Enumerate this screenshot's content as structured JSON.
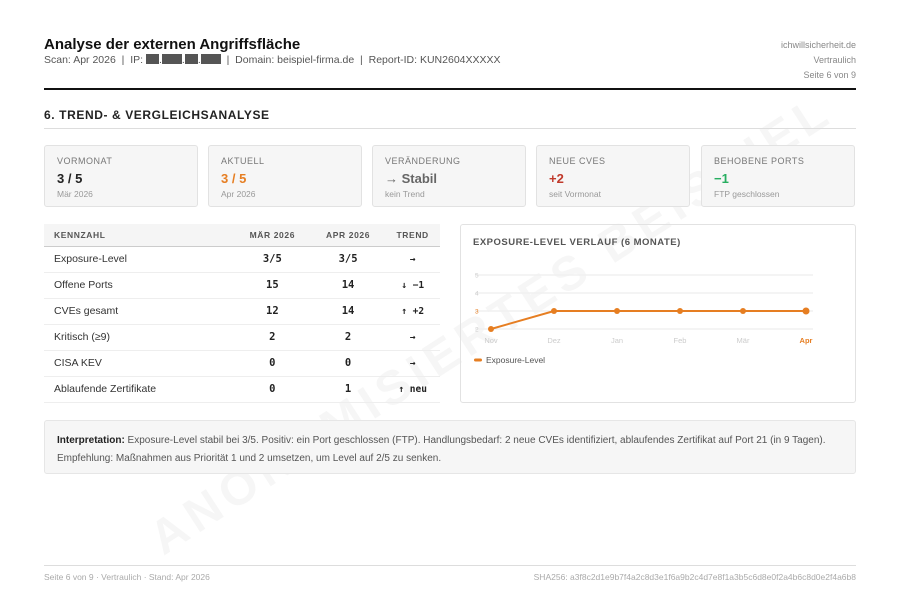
{
  "header": {
    "title": "Analyse der externen Angriffsfläche",
    "scan": "Scan: Apr 2026",
    "ip_label": "IP:",
    "domain": "Domain: beispiel-firma.de",
    "report_id": "Report-ID: KUN2604XXXXX",
    "meta": [
      "ichwillsicherheit.de",
      "Vertraulich",
      "Seite 6 von 9"
    ]
  },
  "section": {
    "title": "6. TREND- & VERGLEICHSANALYSE"
  },
  "kpis": [
    {
      "label": "VORMONAT",
      "value": "3 / 5",
      "sub": "Mär 2026",
      "color": "#222222"
    },
    {
      "label": "AKTUELL",
      "value": "3 / 5",
      "sub": "Apr 2026",
      "color": "#e67e22"
    },
    {
      "label": "VERÄNDERUNG",
      "value": "→ Stabil",
      "sub": "kein Trend",
      "color": "#666666"
    },
    {
      "label": "NEUE CVES",
      "value": "+2",
      "sub": "seit Vormonat",
      "color": "#c0392b"
    },
    {
      "label": "BEHOBENE PORTS",
      "value": "−1",
      "sub": "FTP geschlossen",
      "color": "#27ae60"
    }
  ],
  "table": {
    "headers": [
      "KENNZAHL",
      "MÄR 2026",
      "APR 2026",
      "TREND"
    ],
    "rows": [
      [
        "Exposure-Level",
        "3/5",
        "3/5",
        "→"
      ],
      [
        "Offene Ports",
        "15",
        "14",
        "↓ −1"
      ],
      [
        "CVEs gesamt",
        "12",
        "14",
        "↑ +2"
      ],
      [
        "Kritisch (≥9)",
        "2",
        "2",
        "→"
      ],
      [
        "CISA KEV",
        "0",
        "0",
        "→"
      ],
      [
        "Ablaufende Zertifikate",
        "0",
        "1",
        "↑ neu"
      ]
    ]
  },
  "chart_data": {
    "type": "line",
    "title": "EXPOSURE-LEVEL VERLAUF (6 MONATE)",
    "categories": [
      "Nov",
      "Dez",
      "Jan",
      "Feb",
      "Mär",
      "Apr"
    ],
    "series": [
      {
        "name": "Exposure-Level",
        "values": [
          2,
          3,
          3,
          3,
          3,
          3
        ],
        "color": "#e67e22"
      }
    ],
    "yticks": [
      2,
      3,
      4,
      5
    ],
    "ylim": [
      2,
      5
    ],
    "grid": true,
    "legend": "bottom-left",
    "highlight_category": "Apr"
  },
  "interpretation": {
    "label": "Interpretation:",
    "text": " Exposure-Level stabil bei 3/5. Positiv: ein Port geschlossen (FTP). Handlungsbedarf: 2 neue CVEs identifiziert, ablaufendes Zertifikat auf Port 21 (in 9 Tagen). Empfehlung: Maßnahmen aus Priorität 1 und 2 umsetzen, um Level auf 2/5 zu senken."
  },
  "footer": {
    "left": "Seite 6 von 9 · Vertraulich · Stand: Apr 2026",
    "right": "SHA256: a3f8c2d1e9b7f4a2c8d3e1f6a9b2c4d7e8f1a3b5c6d8e0f2a4b6c8d0e2f4a6b8"
  },
  "watermark": "ANONYMISIERTES BEISPIEL"
}
